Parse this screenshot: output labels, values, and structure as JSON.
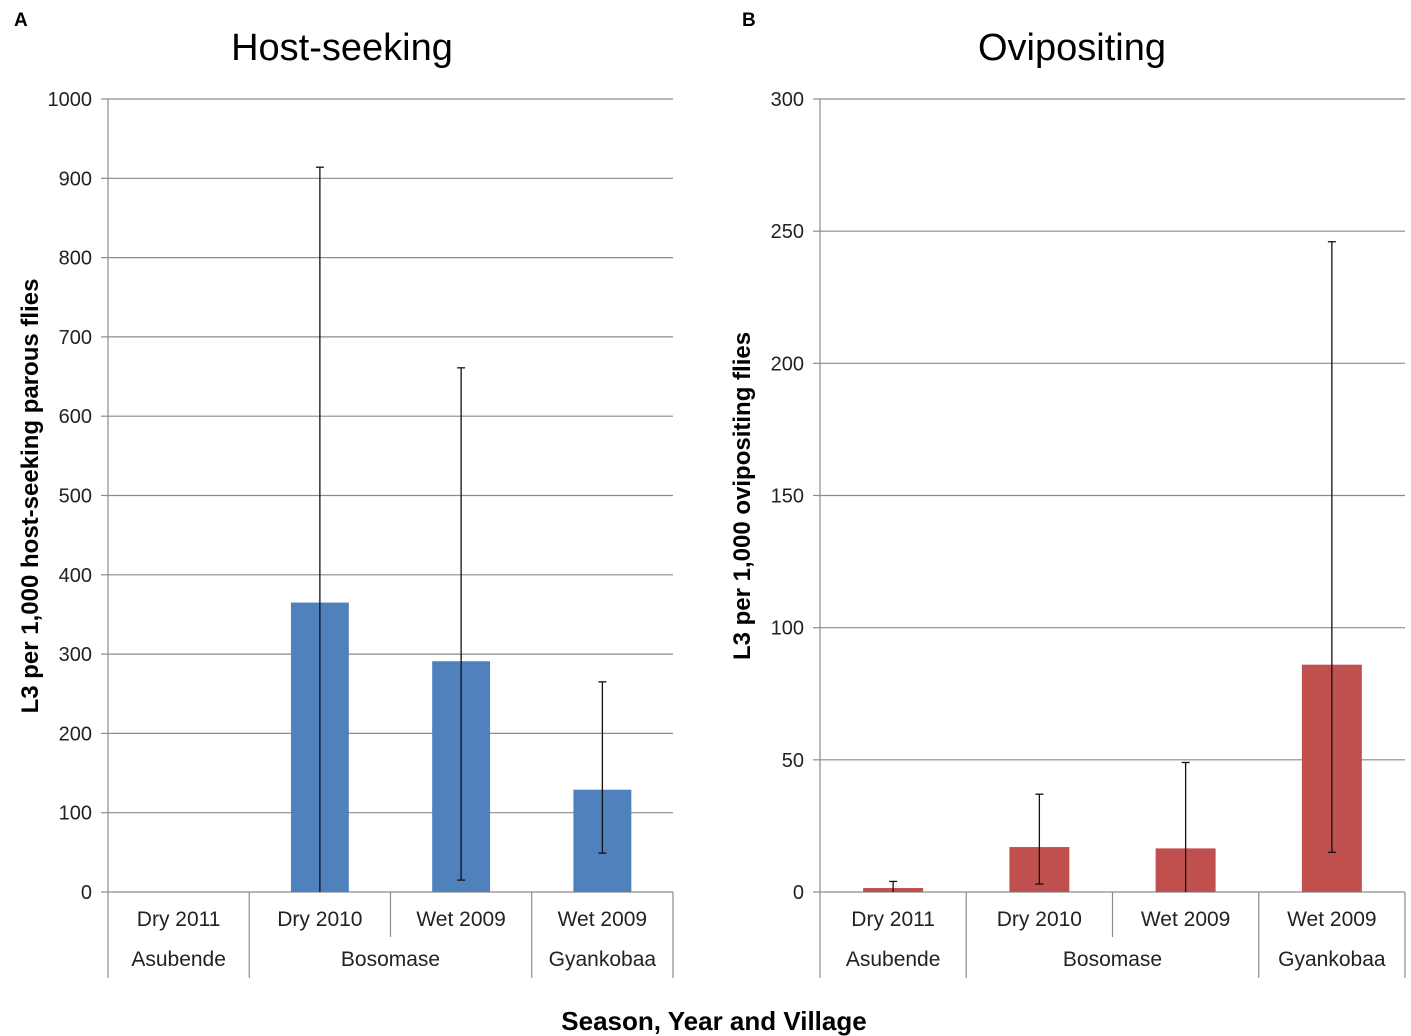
{
  "figure": {
    "xlabel": "Season, Year and Village"
  },
  "chart_data": [
    {
      "panel": "A",
      "type": "bar",
      "title": "Host-seeking",
      "ylabel": "L3 per 1,000 host-seeking parous flies",
      "ylim": [
        0,
        1000
      ],
      "yticks": [
        0,
        100,
        200,
        300,
        400,
        500,
        600,
        700,
        800,
        900,
        1000
      ],
      "grid": true,
      "bar_color": "#4f81bd",
      "categories": [
        "Dry 2011",
        "Dry 2010",
        "Wet 2009",
        "Wet 2009"
      ],
      "groups": [
        {
          "label": "Asubende",
          "count": 1
        },
        {
          "label": "Bosomase",
          "count": 2
        },
        {
          "label": "Gyankobaa",
          "count": 1
        }
      ],
      "values": [
        0,
        365,
        291,
        129
      ],
      "error_low": [
        null,
        0,
        15,
        49
      ],
      "error_high": [
        null,
        914,
        661,
        265
      ]
    },
    {
      "panel": "B",
      "type": "bar",
      "title": "Ovipositing",
      "ylabel": "L3 per 1,000 ovipositing flies",
      "ylim": [
        0,
        300
      ],
      "yticks": [
        0,
        50,
        100,
        150,
        200,
        250,
        300
      ],
      "grid": true,
      "bar_color": "#c0504d",
      "categories": [
        "Dry 2011",
        "Dry 2010",
        "Wet 2009",
        "Wet 2009"
      ],
      "groups": [
        {
          "label": "Asubende",
          "count": 1
        },
        {
          "label": "Bosomase",
          "count": 2
        },
        {
          "label": "Gyankobaa",
          "count": 1
        }
      ],
      "values": [
        1.5,
        17,
        16.5,
        86
      ],
      "error_low": [
        0,
        3,
        0,
        15
      ],
      "error_high": [
        4,
        37,
        49,
        246
      ]
    }
  ]
}
